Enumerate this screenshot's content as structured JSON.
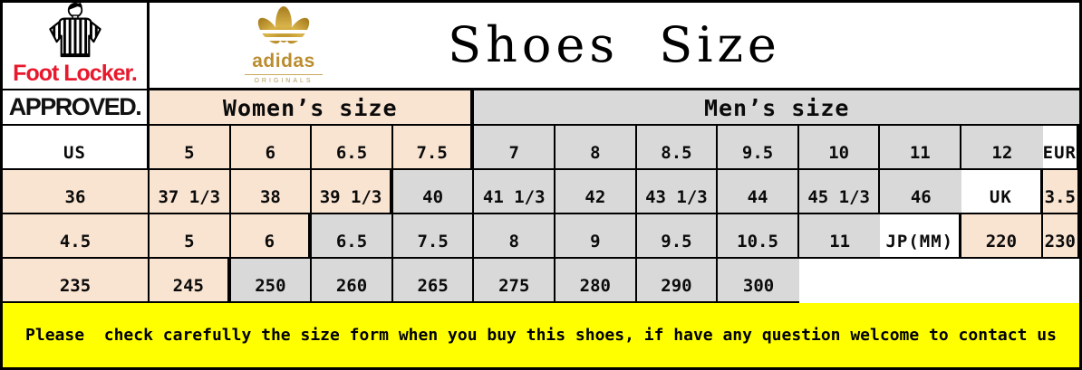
{
  "branding": {
    "footlocker_wordmark": "Foot Locker.",
    "approved_label": "APPROVED.",
    "adidas_wordmark": "adidas",
    "adidas_sub": "ORIGINALS",
    "title": "Shoes Size",
    "footlocker_red": "#e8192c",
    "adidas_gold": "#bb8d2f"
  },
  "table": {
    "women_header": "Women’s size",
    "men_header": "Men’s size",
    "women_bg": "#f9e3d1",
    "men_bg": "#d9d9d9",
    "rows": [
      {
        "label": "US",
        "women": [
          "5",
          "6",
          "6.5",
          "7.5"
        ],
        "men": [
          "7",
          "8",
          "8.5",
          "9.5",
          "10",
          "11",
          "12"
        ]
      },
      {
        "label": "EUR",
        "women": [
          "36",
          "37 1/3",
          "38",
          "39 1/3"
        ],
        "men": [
          "40",
          "41 1/3",
          "42",
          "43 1/3",
          "44",
          "45 1/3",
          "46"
        ]
      },
      {
        "label": "UK",
        "women": [
          "3.5",
          "4.5",
          "5",
          "6"
        ],
        "men": [
          "6.5",
          "7.5",
          "8",
          "9",
          "9.5",
          "10.5",
          "11"
        ]
      },
      {
        "label": "JP(MM)",
        "women": [
          "220",
          "230",
          "235",
          "245"
        ],
        "men": [
          "250",
          "260",
          "265",
          "275",
          "280",
          "290",
          "300"
        ]
      }
    ]
  },
  "banner": {
    "text": "Please  check carefully the size form when you buy this shoes, if have any question welcome to contact us",
    "bg": "#ffff00"
  }
}
